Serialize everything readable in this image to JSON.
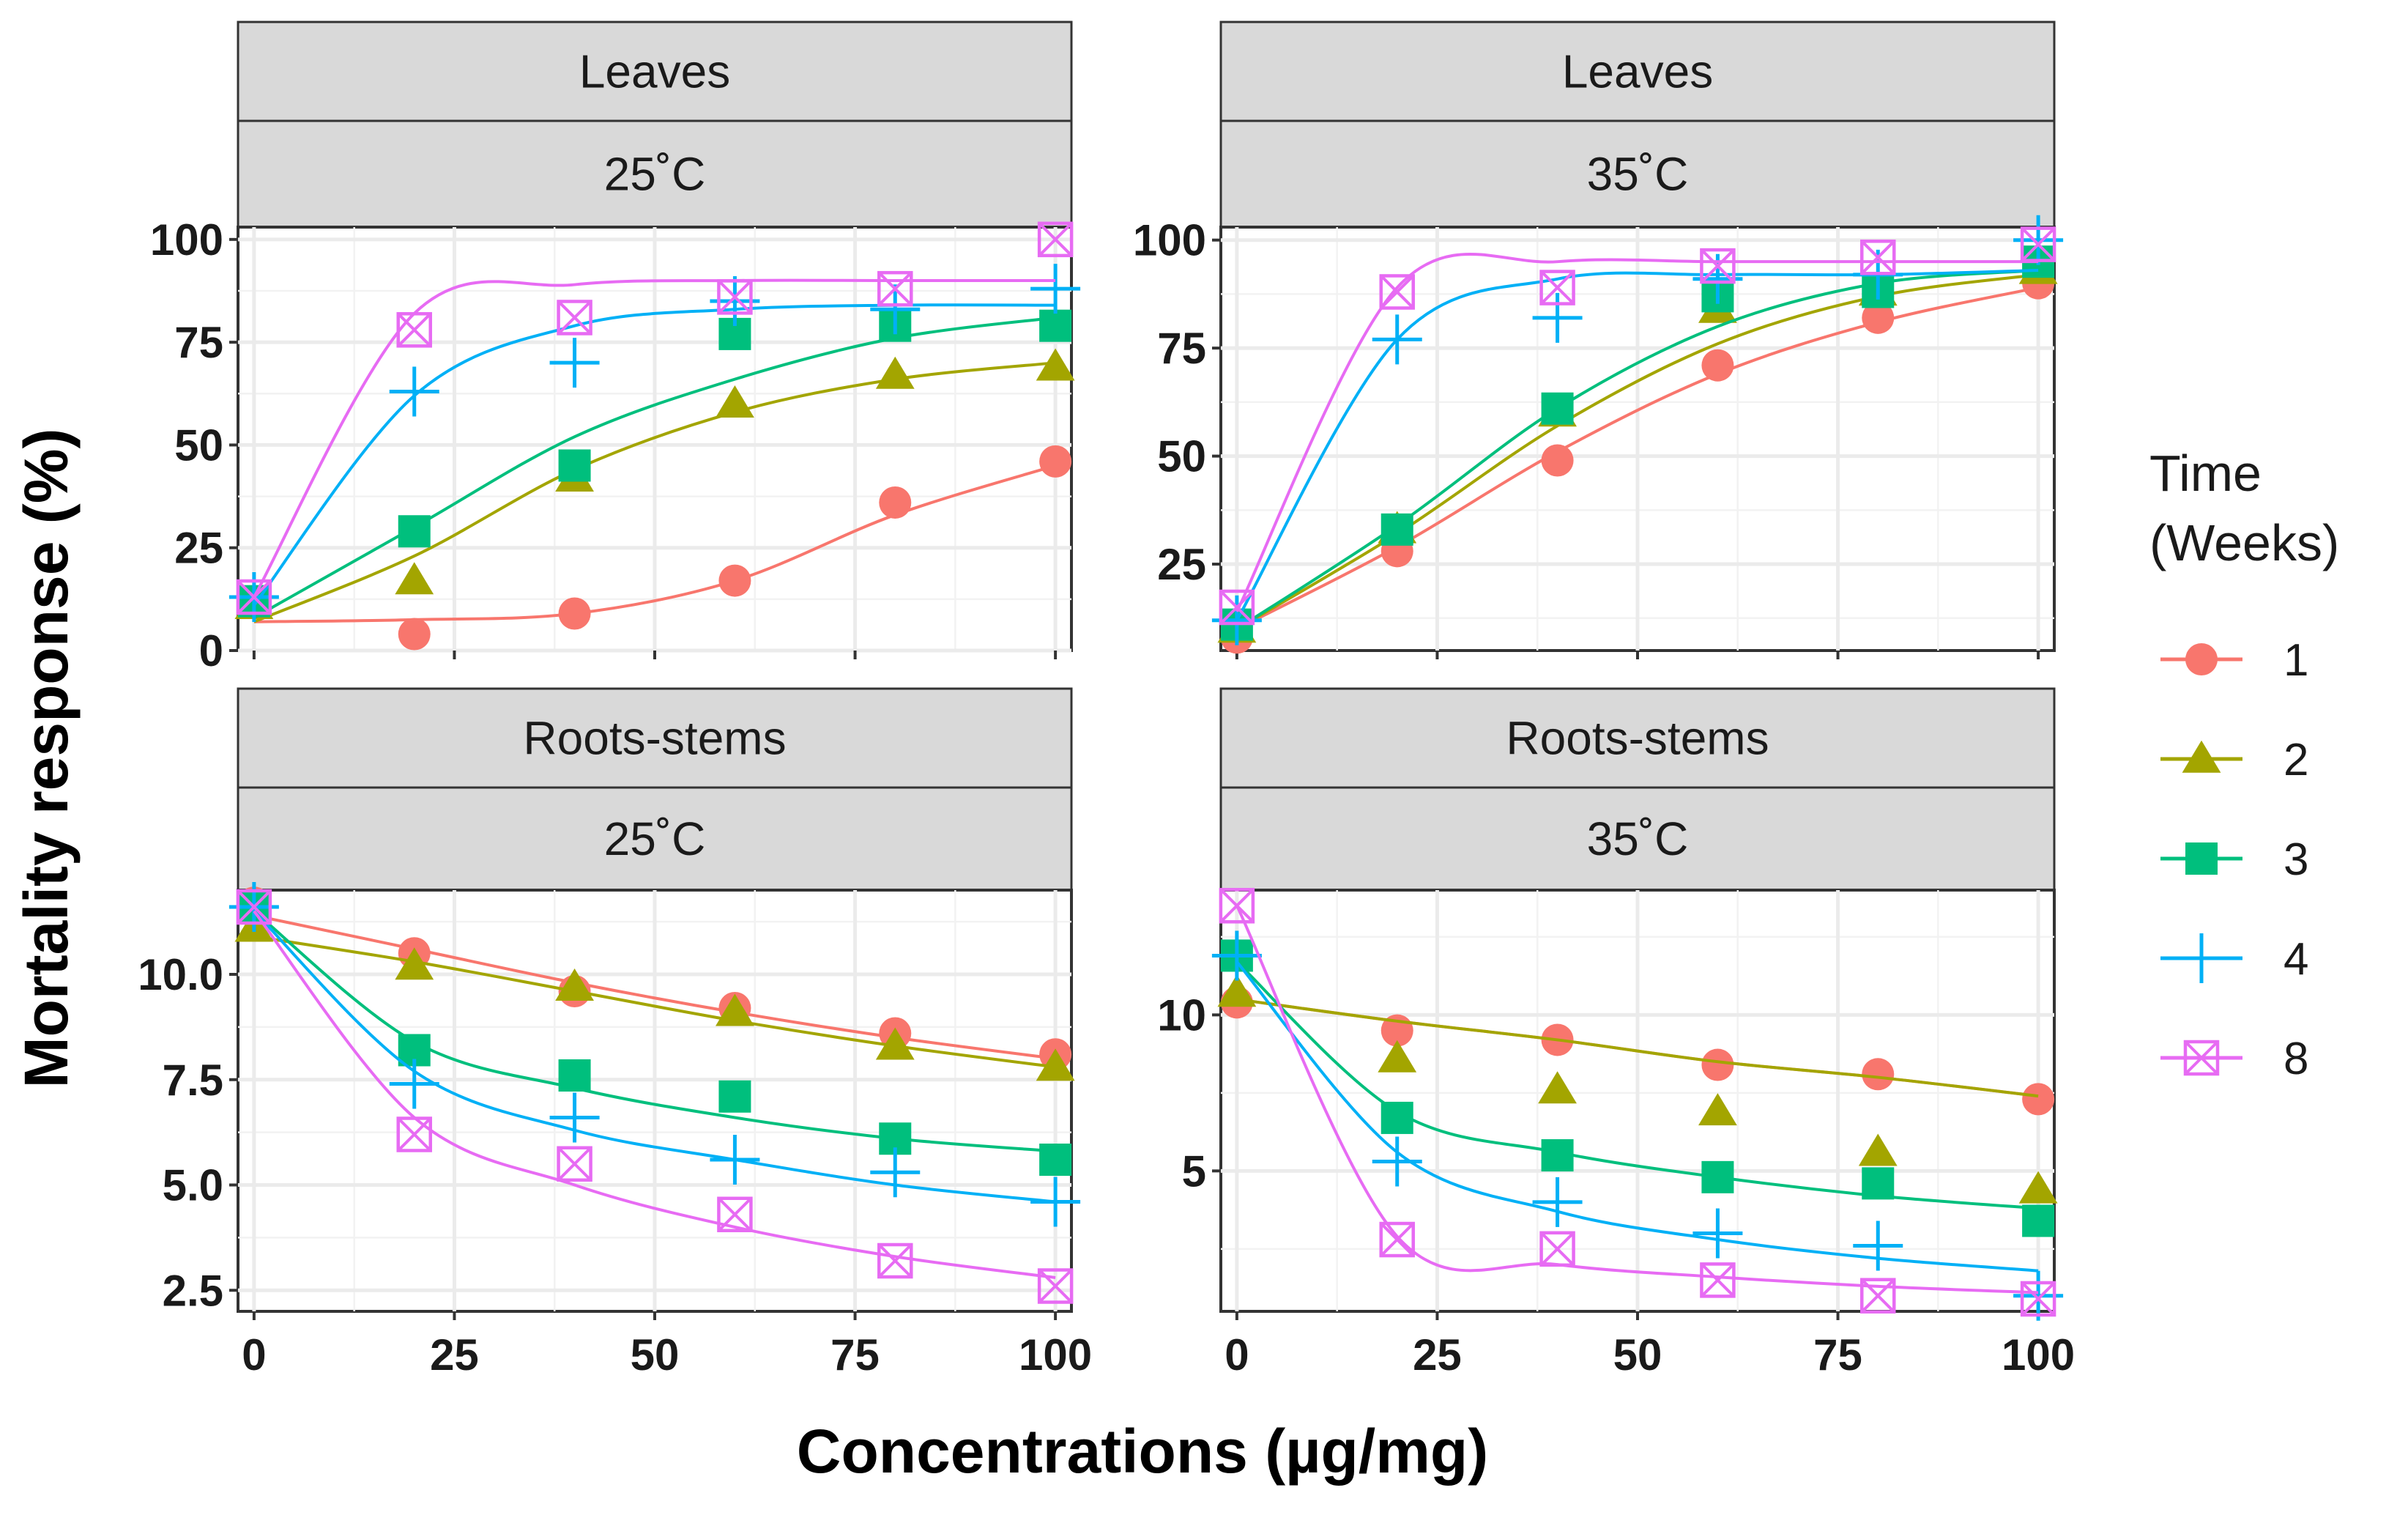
{
  "chart_data": {
    "type": "line",
    "xlabel": "Concentrations (µg/mg)",
    "ylabel": "Mortality response (%)",
    "legend": {
      "title_line1": "Time",
      "title_line2": "(Weeks)",
      "placement": "right"
    },
    "x": [
      0,
      20,
      40,
      60,
      80,
      100
    ],
    "xlim": [
      -2,
      102
    ],
    "xticks": [
      0,
      25,
      50,
      75,
      100
    ],
    "xtick_labels": [
      "0",
      "25",
      "50",
      "75",
      "100"
    ],
    "series_styles": [
      {
        "name": "1",
        "color": "#F8766D",
        "marker": "circle"
      },
      {
        "name": "2",
        "color": "#A3A500",
        "marker": "triangle"
      },
      {
        "name": "3",
        "color": "#00BF7D",
        "marker": "square"
      },
      {
        "name": "4",
        "color": "#00B0F6",
        "marker": "plus"
      },
      {
        "name": "8",
        "color": "#E76BF3",
        "marker": "boxcross"
      }
    ],
    "panels": [
      {
        "strip_top": "Leaves",
        "strip_bottom": "25˚C",
        "ylim": [
          0,
          103
        ],
        "yticks": [
          0,
          25,
          50,
          75,
          100
        ],
        "ytick_labels": [
          "0",
          "25",
          "50",
          "75",
          "100"
        ],
        "series": [
          {
            "name": "1",
            "values": [
              12,
              4,
              9,
              17,
              36,
              46
            ],
            "fit": [
              7,
              7.5,
              9,
              17,
              33,
              45
            ]
          },
          {
            "name": "2",
            "values": [
              11,
              17,
              42,
              60,
              67,
              69
            ],
            "fit": [
              7,
              23,
              44,
              58,
              66,
              70
            ]
          },
          {
            "name": "3",
            "values": [
              12,
              29,
              45,
              77,
              79,
              79
            ],
            "fit": [
              8,
              30,
              52,
              66,
              76,
              81
            ]
          },
          {
            "name": "4",
            "values": [
              13,
              63,
              70,
              85,
              83,
              88
            ],
            "fit": [
              11,
              62,
              79,
              83,
              84,
              84
            ]
          },
          {
            "name": "8",
            "values": [
              13,
              78,
              81,
              86,
              88,
              100
            ],
            "fit": [
              13,
              82,
              89,
              90,
              90,
              90
            ]
          }
        ]
      },
      {
        "strip_top": "Leaves",
        "strip_bottom": "35˚C",
        "ylim": [
          5,
          103
        ],
        "yticks": [
          25,
          50,
          75,
          100
        ],
        "ytick_labels": [
          "25",
          "50",
          "75",
          "100"
        ],
        "series": [
          {
            "name": "1",
            "values": [
              8,
              28,
              49,
              71,
              82,
              90
            ],
            "fit": [
              10,
              29,
              51,
              69,
              81,
              89
            ]
          },
          {
            "name": "2",
            "values": [
              10,
              33,
              60,
              84,
              88,
              93
            ],
            "fit": [
              10,
              32,
              57,
              76,
              87,
              92
            ]
          },
          {
            "name": "3",
            "values": [
              11,
              33,
              61,
              87,
              88,
              95
            ],
            "fit": [
              10,
              34,
              61,
              80,
              90,
              93
            ]
          },
          {
            "name": "4",
            "values": [
              12,
              77,
              82,
              91,
              92,
              100
            ],
            "fit": [
              12,
              77,
              91,
              92,
              92,
              93
            ]
          },
          {
            "name": "8",
            "values": [
              15,
              88,
              89,
              94,
              96,
              99
            ],
            "fit": [
              14,
              89,
              95,
              95,
              95,
              95
            ]
          }
        ]
      },
      {
        "strip_top": "Roots-stems",
        "strip_bottom": "25˚C",
        "ylim": [
          2,
          12
        ],
        "yticks": [
          2.5,
          5.0,
          7.5,
          10.0
        ],
        "ytick_labels": [
          "2.5",
          "5.0",
          "7.5",
          "10.0"
        ],
        "series": [
          {
            "name": "1",
            "values": [
              11.7,
              10.5,
              9.6,
              9.2,
              8.6,
              8.1
            ],
            "fit": [
              11.4,
              10.6,
              9.8,
              9.1,
              8.5,
              8.0
            ]
          },
          {
            "name": "2",
            "values": [
              11.1,
              10.2,
              9.7,
              9.1,
              8.3,
              7.8
            ],
            "fit": [
              10.9,
              10.3,
              9.6,
              8.9,
              8.3,
              7.8
            ]
          },
          {
            "name": "3",
            "values": [
              11.6,
              8.2,
              7.6,
              7.1,
              6.1,
              5.6
            ],
            "fit": [
              11.5,
              8.4,
              7.3,
              6.6,
              6.1,
              5.8
            ]
          },
          {
            "name": "4",
            "values": [
              11.6,
              7.4,
              6.6,
              5.6,
              5.3,
              4.6
            ],
            "fit": [
              11.5,
              7.7,
              6.3,
              5.6,
              5.0,
              4.6
            ]
          },
          {
            "name": "8",
            "values": [
              11.6,
              6.2,
              5.5,
              4.3,
              3.2,
              2.6
            ],
            "fit": [
              11.5,
              6.6,
              5.0,
              4.0,
              3.3,
              2.8
            ]
          }
        ]
      },
      {
        "strip_top": "Roots-stems",
        "strip_bottom": "35˚C",
        "ylim": [
          0.5,
          14
        ],
        "yticks": [
          5,
          10
        ],
        "ytick_labels": [
          "5",
          "10"
        ],
        "series": [
          {
            "name": "1",
            "values": [
              10.4,
              9.5,
              9.2,
              8.4,
              8.1,
              7.3
            ],
            "fit": [
              10.5,
              9.8,
              9.2,
              8.5,
              8.0,
              7.4
            ]
          },
          {
            "name": "2",
            "values": [
              10.7,
              8.6,
              7.6,
              6.9,
              5.6,
              4.4
            ],
            "fit": [
              10.5,
              9.8,
              9.2,
              8.5,
              8.0,
              7.4
            ]
          },
          {
            "name": "3",
            "values": [
              11.9,
              6.7,
              5.5,
              4.8,
              4.6,
              3.4
            ],
            "fit": [
              11.7,
              6.9,
              5.6,
              4.8,
              4.2,
              3.8
            ]
          },
          {
            "name": "4",
            "values": [
              11.9,
              5.3,
              4.0,
              3.0,
              2.6,
              1.0
            ],
            "fit": [
              11.7,
              5.6,
              3.7,
              2.8,
              2.2,
              1.8
            ]
          },
          {
            "name": "8",
            "values": [
              13.5,
              2.8,
              2.5,
              1.5,
              1.0,
              0.9
            ],
            "fit": [
              13.5,
              2.9,
              2.0,
              1.6,
              1.3,
              1.1
            ]
          }
        ]
      }
    ]
  }
}
